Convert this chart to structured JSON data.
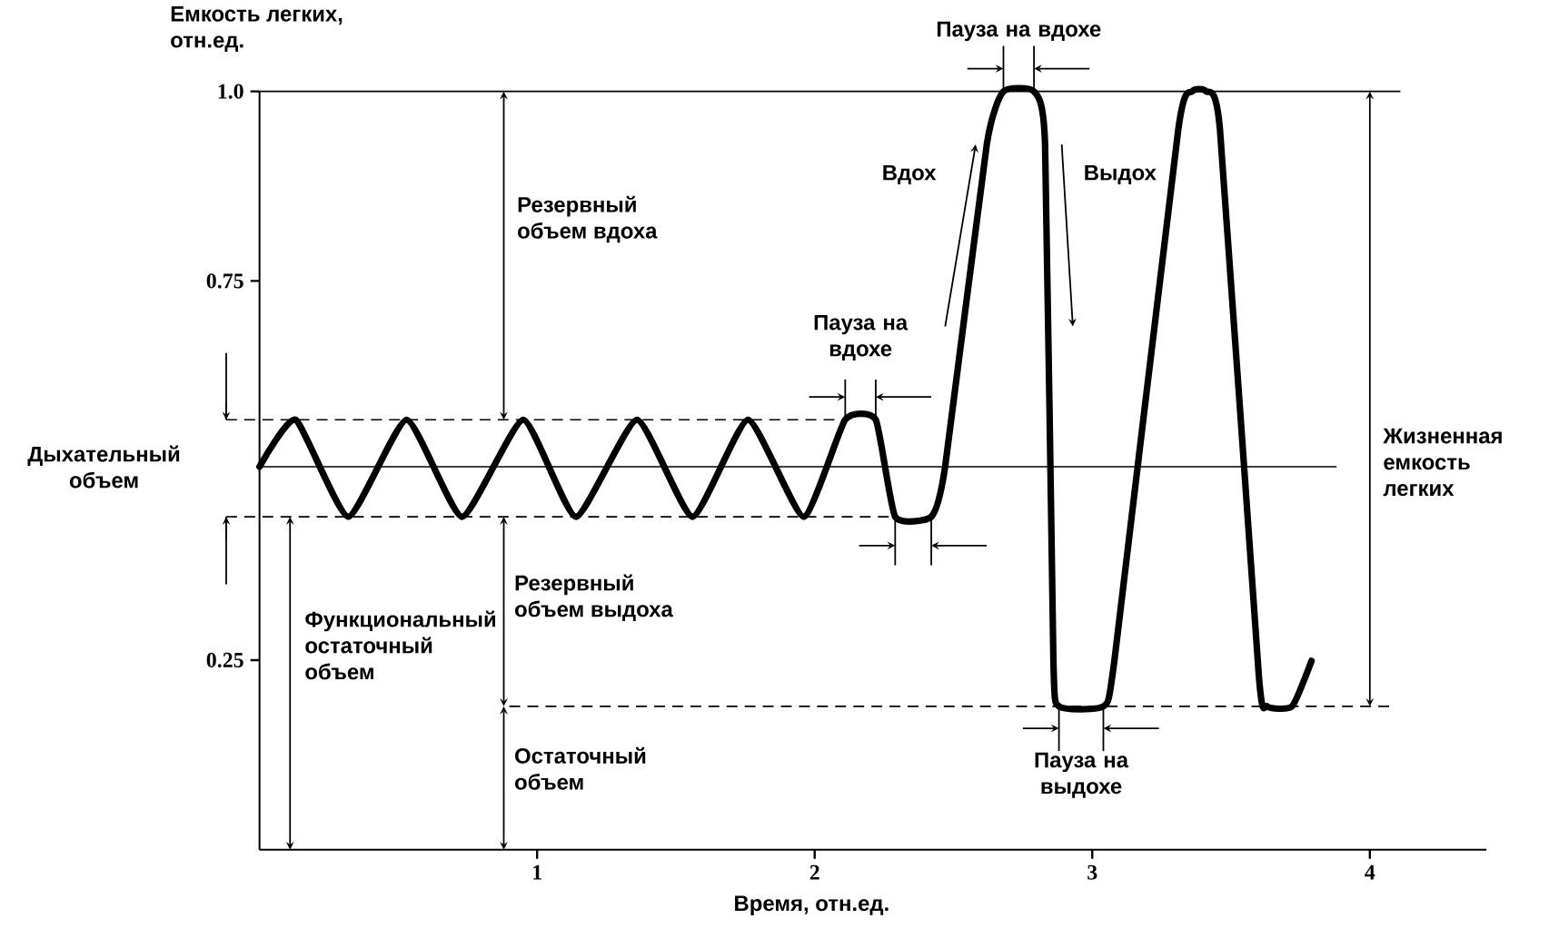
{
  "chart_data": {
    "type": "line",
    "xlabel": "Время, отн.ед.",
    "ylabel": "Емкость легких, отн.ед.",
    "x": [
      0.0,
      0.13,
      0.32,
      0.53,
      0.73,
      0.95,
      1.14,
      1.36,
      1.56,
      1.76,
      1.96,
      2.11,
      2.22,
      2.29,
      2.42,
      2.47,
      2.62,
      2.68,
      2.79,
      2.83,
      2.86,
      2.88,
      3.04,
      3.08,
      3.31,
      3.36,
      3.41,
      3.46,
      3.6,
      3.63,
      3.72,
      3.79
    ],
    "series": [
      {
        "color": "#000000",
        "values": [
          0.505,
          0.567,
          0.439,
          0.567,
          0.439,
          0.567,
          0.439,
          0.567,
          0.439,
          0.567,
          0.439,
          0.567,
          0.567,
          0.439,
          0.439,
          0.505,
          0.93,
          1.0,
          1.0,
          0.93,
          0.25,
          0.189,
          0.189,
          0.25,
          0.95,
          1.0,
          1.0,
          0.95,
          0.23,
          0.189,
          0.189,
          0.249
        ]
      }
    ],
    "xlim": [
      0,
      4.42
    ],
    "ylim": [
      0,
      1.0
    ],
    "xticks": [
      1,
      2,
      3,
      4
    ],
    "yticks": [
      0.25,
      0.75,
      {
        "value": 1.0,
        "label": "1.0"
      }
    ],
    "line_style": "solid",
    "ref_lines": [
      {
        "axis": "y",
        "value": 1.0,
        "line_style": "solid"
      },
      {
        "axis": "y",
        "value": 0.567,
        "line_style": "dashed"
      },
      {
        "axis": "y",
        "value": 0.505,
        "line_style": "solid"
      },
      {
        "axis": "y",
        "value": 0.439,
        "line_style": "dashed"
      },
      {
        "axis": "y",
        "value": 0.189,
        "line_style": "dashed"
      }
    ],
    "annotations": [
      "Резервный объем вдоха",
      {
        "text": "Пауза на вдохе",
        "x": 2.165,
        "y": 0.567
      },
      {
        "text": "Пауза на вдохе",
        "x": 2.735,
        "y": 1.0
      },
      "Вдох",
      "Выдох",
      "Дыхательный объем",
      "Функциональный остаточный объем",
      "Резервный объем выдоха",
      "Остаточный объем",
      {
        "text": "Пауза на выдохе",
        "x": 2.96,
        "y": 0.189
      },
      "Жизненная емкость легких"
    ]
  }
}
